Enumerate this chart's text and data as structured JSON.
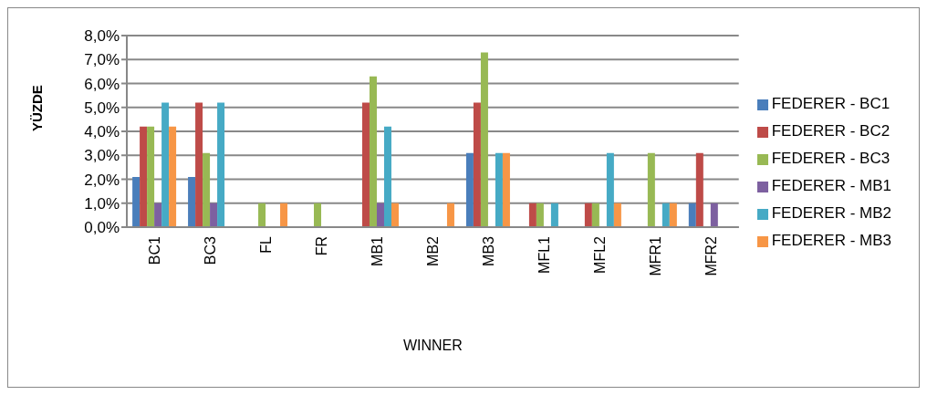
{
  "chart_data": {
    "type": "bar",
    "ylabel": "YÜZDE",
    "xlabel": "WINNER",
    "categories": [
      "BC1",
      "BC3",
      "FL",
      "FR",
      "MB1",
      "MB2",
      "MB3",
      "MFL1",
      "MFL2",
      "MFR1",
      "MFR2"
    ],
    "series": [
      {
        "name": "FEDERER - BC1",
        "color": "#4a7ebb",
        "values": [
          2.1,
          2.1,
          0,
          0,
          0,
          0,
          3.1,
          0,
          0,
          0,
          1.0
        ]
      },
      {
        "name": "FEDERER - BC2",
        "color": "#be4b48",
        "values": [
          4.2,
          5.2,
          0,
          0,
          5.2,
          0,
          5.2,
          1.0,
          1.0,
          0,
          3.1
        ]
      },
      {
        "name": "FEDERER - BC3",
        "color": "#98b954",
        "values": [
          4.2,
          3.1,
          1.0,
          1.0,
          6.3,
          0,
          7.3,
          1.0,
          1.0,
          3.1,
          0
        ]
      },
      {
        "name": "FEDERER - MB1",
        "color": "#7d60a0",
        "values": [
          1.0,
          1.0,
          0,
          0,
          1.0,
          0,
          0,
          0,
          0,
          0,
          1.0
        ]
      },
      {
        "name": "FEDERER - MB2",
        "color": "#46aac5",
        "values": [
          5.2,
          5.2,
          0,
          0,
          4.2,
          0,
          3.1,
          1.0,
          3.1,
          1.0,
          0
        ]
      },
      {
        "name": "FEDERER - MB3",
        "color": "#f79646",
        "values": [
          4.2,
          0,
          1.0,
          0,
          1.0,
          1.0,
          3.1,
          0,
          1.0,
          1.0,
          0
        ]
      }
    ],
    "ylim": [
      0,
      8
    ],
    "yticks": [
      {
        "value": 0,
        "label": "0,0%"
      },
      {
        "value": 1,
        "label": "1,0%"
      },
      {
        "value": 2,
        "label": "2,0%"
      },
      {
        "value": 3,
        "label": "3,0%"
      },
      {
        "value": 4,
        "label": "4,0%"
      },
      {
        "value": 5,
        "label": "5,0%"
      },
      {
        "value": 6,
        "label": "6,0%"
      },
      {
        "value": 7,
        "label": "7,0%"
      },
      {
        "value": 8,
        "label": "8,0%"
      }
    ],
    "grid": "y",
    "legend": "right"
  }
}
